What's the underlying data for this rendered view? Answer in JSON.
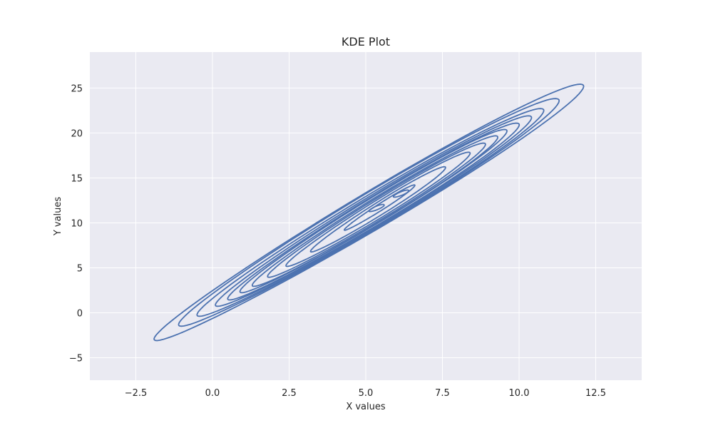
{
  "chart_data": {
    "type": "kde-contour",
    "title": "KDE Plot",
    "xlabel": "X values",
    "ylabel": "Y values",
    "xlim": [
      -4.0,
      14.0
    ],
    "ylim": [
      -7.5,
      29.0
    ],
    "xticks": [
      -2.5,
      0.0,
      2.5,
      5.0,
      7.5,
      10.0,
      12.5
    ],
    "xtick_labels": [
      "−2.5",
      "0.0",
      "2.5",
      "5.0",
      "7.5",
      "10.0",
      "12.5"
    ],
    "yticks": [
      -5,
      0,
      5,
      10,
      15,
      20,
      25
    ],
    "ytick_labels": [
      "−5",
      "0",
      "5",
      "10",
      "15",
      "20",
      "25"
    ],
    "grid": true,
    "colors": {
      "background": "#eaeaf2",
      "grid": "#ffffff",
      "contour": "#4c72b0"
    },
    "levels": [
      {
        "x_range": [
          -1.9,
          12.1
        ],
        "y_range": [
          -3.0,
          25.3
        ]
      },
      {
        "x_range": [
          -1.1,
          11.3
        ],
        "y_range": [
          -1.4,
          23.7
        ]
      },
      {
        "x_range": [
          -0.5,
          10.8
        ],
        "y_range": [
          -0.3,
          22.6
        ]
      },
      {
        "x_range": [
          0.1,
          10.4
        ],
        "y_range": [
          0.8,
          21.8
        ]
      },
      {
        "x_range": [
          0.5,
          10.0
        ],
        "y_range": [
          1.5,
          21.0
        ]
      },
      {
        "x_range": [
          0.9,
          9.6
        ],
        "y_range": [
          2.3,
          20.3
        ]
      },
      {
        "x_range": [
          1.3,
          9.3
        ],
        "y_range": [
          3.0,
          19.6
        ]
      },
      {
        "x_range": [
          1.8,
          8.9
        ],
        "y_range": [
          4.0,
          18.8
        ]
      },
      {
        "x_range": [
          2.4,
          8.4
        ],
        "y_range": [
          5.2,
          17.8
        ]
      },
      {
        "x_range": [
          3.2,
          7.6
        ],
        "y_range": [
          6.8,
          16.2
        ]
      },
      {
        "x_range": [
          4.3,
          6.6
        ],
        "y_range": [
          9.2,
          14.2
        ]
      },
      {
        "x_range": [
          5.1,
          5.6
        ],
        "y_range": [
          11.3,
          12.0
        ]
      },
      {
        "x_range": [
          5.9,
          6.4
        ],
        "y_range": [
          12.9,
          13.6
        ]
      }
    ]
  }
}
